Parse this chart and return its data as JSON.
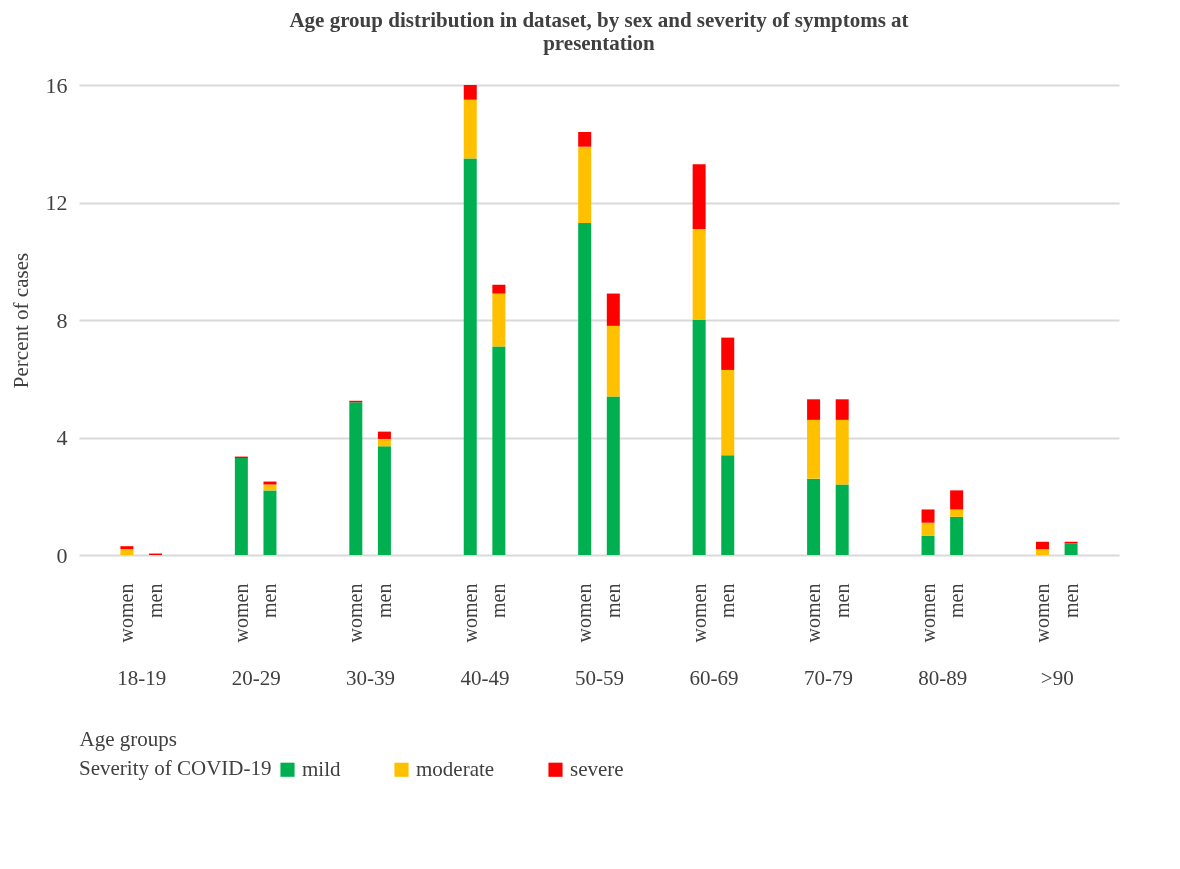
{
  "chart_data": {
    "type": "bar",
    "title": "Age group distribution in dataset, by sex and severity of symptoms at presentation",
    "xlabel": "Age groups",
    "ylabel": "Percent of cases",
    "legend_title": "Severity of COVID-19",
    "categories": [
      "women",
      "men",
      "women",
      "men",
      "women",
      "men",
      "women",
      "men",
      "women",
      "men",
      "women",
      "men",
      "women",
      "men",
      "women",
      "men",
      "women",
      "men"
    ],
    "annotations": [
      "18-19",
      "20-29",
      "30-39",
      "40-49",
      "50-59",
      "60-69",
      "70-79",
      "80-89",
      ">90"
    ],
    "stacked": true,
    "ylim": [
      0,
      16
    ],
    "yticks": [
      0,
      4,
      8,
      12,
      16
    ],
    "grid": "y",
    "legend": "bottom",
    "series": [
      {
        "name": "mild",
        "color": "#00b050",
        "values": [
          0,
          0,
          3.3,
          2.2,
          5.2,
          3.7,
          13.5,
          7.1,
          11.3,
          5.4,
          8.0,
          3.4,
          2.6,
          2.4,
          0.65,
          1.3,
          0,
          0.4
        ]
      },
      {
        "name": "moderate",
        "color": "#ffc000",
        "values": [
          0.2,
          0,
          0,
          0.2,
          0,
          0.25,
          2.0,
          1.8,
          2.6,
          2.4,
          3.1,
          2.9,
          2.0,
          2.2,
          0.45,
          0.25,
          0.2,
          0
        ]
      },
      {
        "name": "severe",
        "color": "#ff0000",
        "values": [
          0.1,
          0.05,
          0.05,
          0.1,
          0.05,
          0.25,
          0.5,
          0.3,
          0.5,
          1.1,
          2.2,
          1.1,
          0.7,
          0.7,
          0.45,
          0.65,
          0.25,
          0.05
        ]
      }
    ]
  }
}
